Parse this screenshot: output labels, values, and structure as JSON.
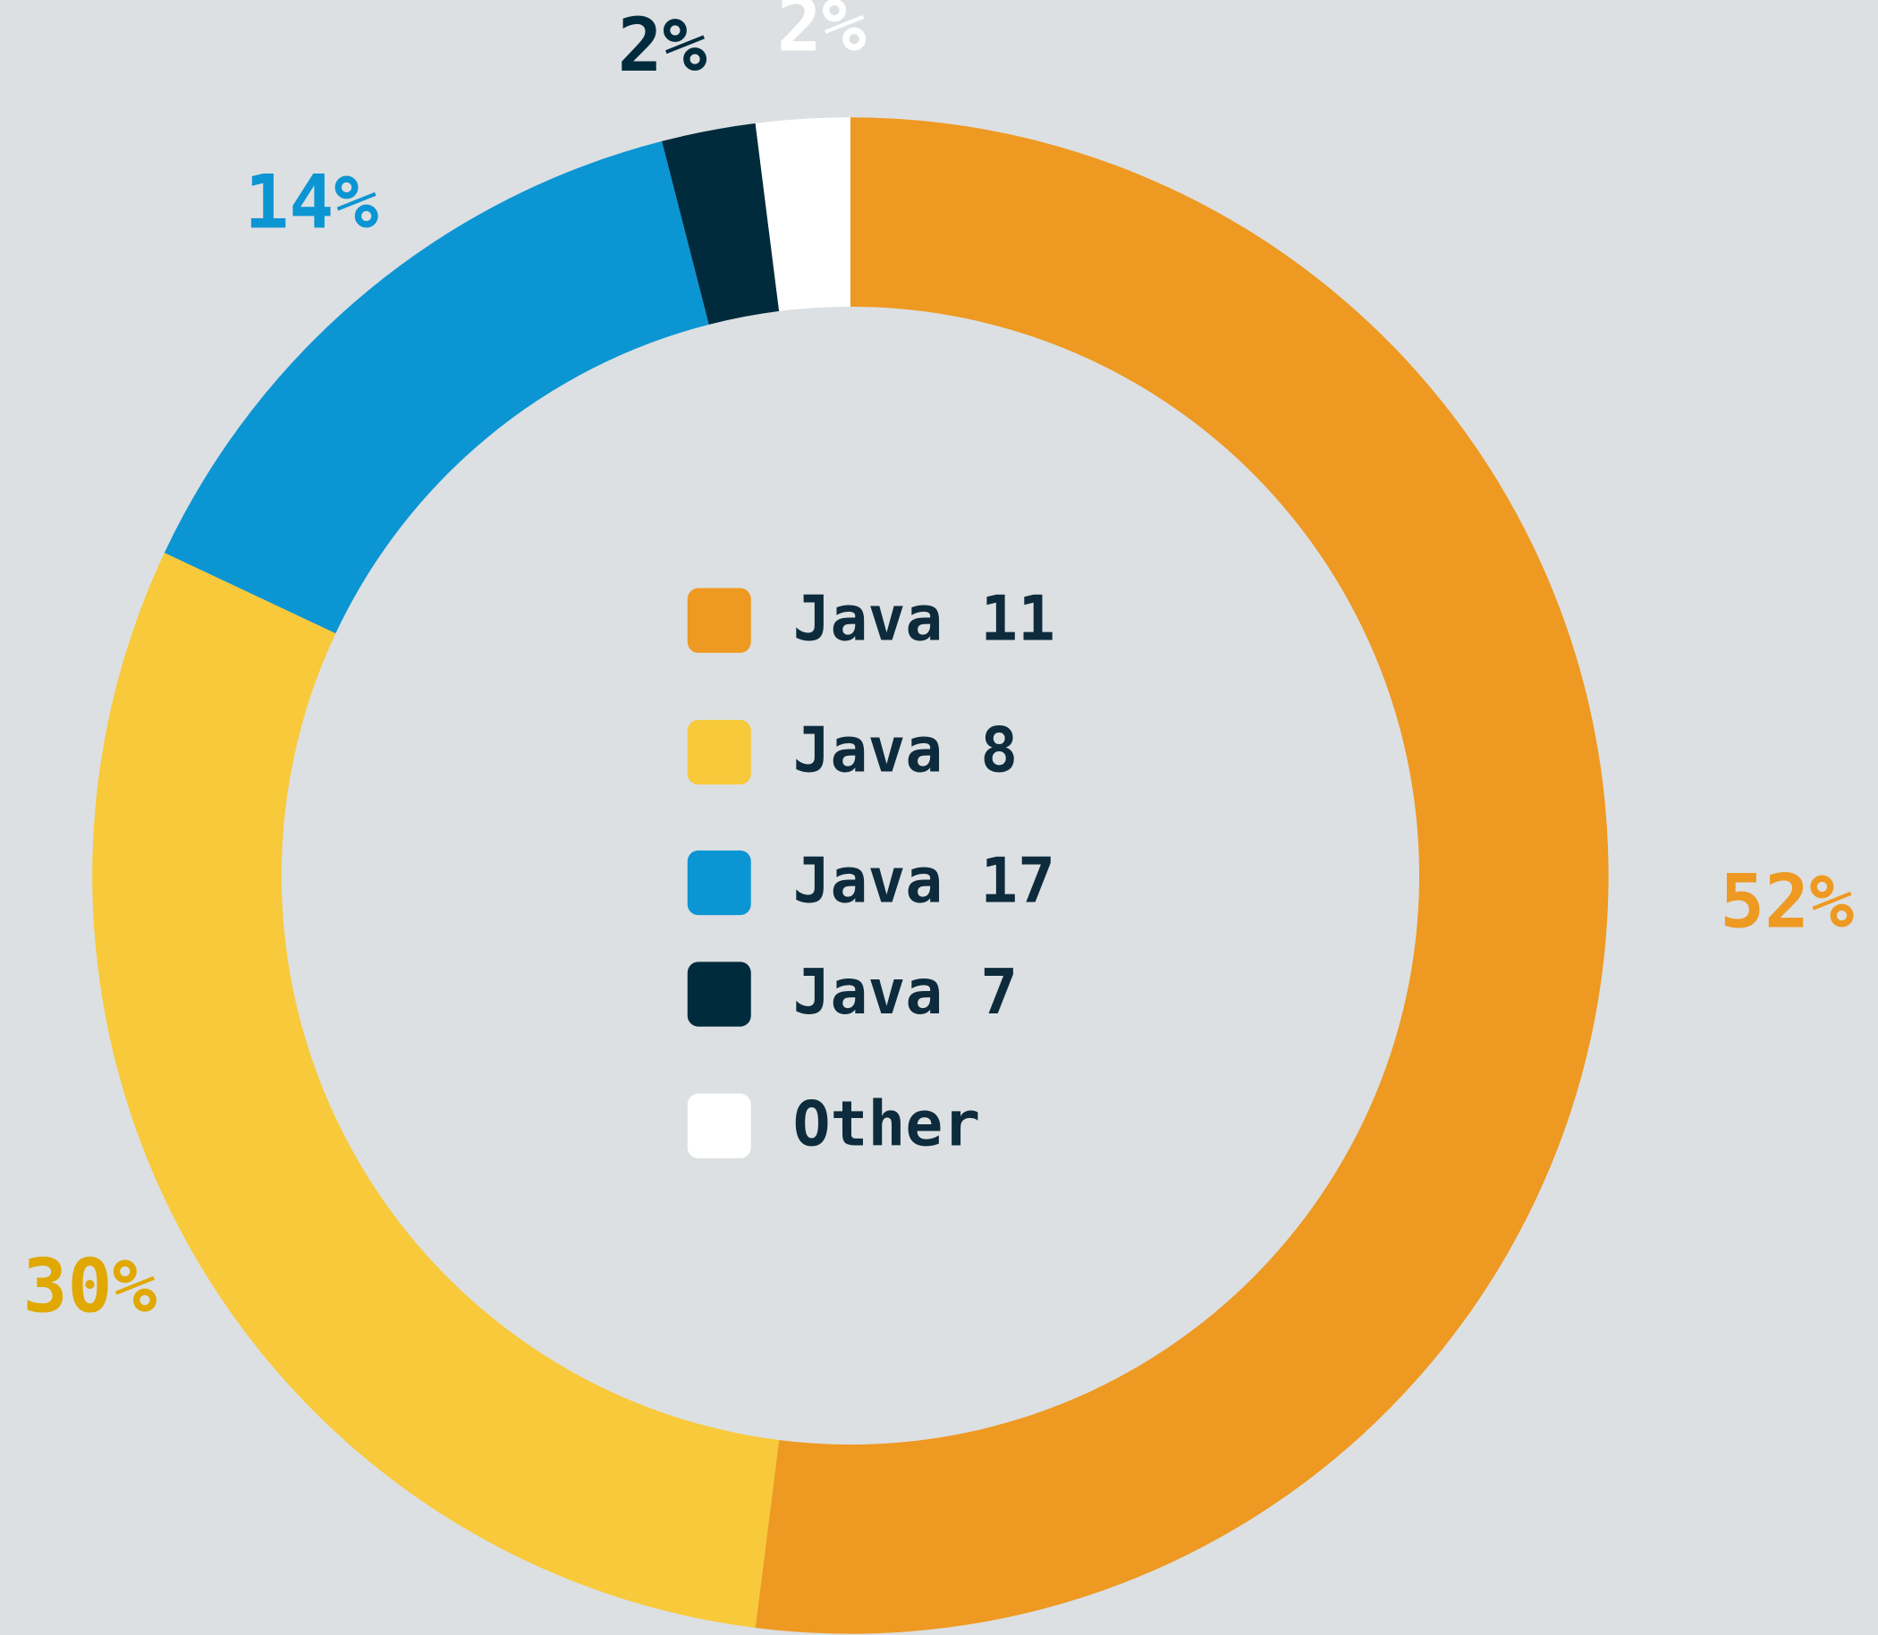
{
  "chart_data": {
    "type": "donut",
    "categories": [
      "Java 11",
      "Java 8",
      "Java 17",
      "Java 7",
      "Other"
    ],
    "values": [
      52,
      30,
      14,
      2,
      2
    ],
    "value_labels": [
      "52%",
      "30%",
      "14%",
      "2%",
      "2%"
    ],
    "colors": [
      "#ee9922",
      "#f8c93a",
      "#0c95d3",
      "#002b3d",
      "#ffffff"
    ],
    "label_colors": [
      "#ee9922",
      "#e0a800",
      "#0c95d3",
      "#002b3d",
      "#ffffff"
    ],
    "legend": "center"
  }
}
